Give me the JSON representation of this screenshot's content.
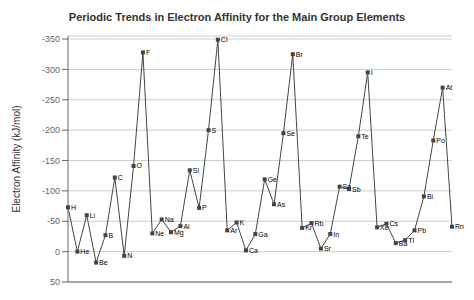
{
  "chart_data": {
    "type": "line",
    "title": "Periodic Trends in Electron Affinity for the Main Group Elements",
    "ylabel": "Electron Affinity (kJ/mol)",
    "categories": [
      "H",
      "He",
      "Li",
      "Be",
      "B",
      "C",
      "N",
      "O",
      "F",
      "Ne",
      "Na",
      "Mg",
      "Al",
      "Si",
      "P",
      "S",
      "Cl",
      "Ar",
      "K",
      "Ca",
      "Ga",
      "Ge",
      "As",
      "Se",
      "Br",
      "Kr",
      "Rb",
      "Sr",
      "In",
      "Sn",
      "Sb",
      "Te",
      "I",
      "Xe",
      "Cs",
      "Ba",
      "Tl",
      "Pb",
      "Bi",
      "Po",
      "At",
      "Rn"
    ],
    "values": [
      -73,
      0,
      -60,
      18,
      -27,
      -122,
      7,
      -141,
      -328,
      -30,
      -53,
      -32,
      -42,
      -134,
      -72,
      -200,
      -349,
      -35,
      -48,
      -2,
      -29,
      -119,
      -78,
      -195,
      -325,
      -39,
      -47,
      -5,
      -29,
      -107,
      -103,
      -190,
      -295,
      -40,
      -46,
      -14,
      -19,
      -35,
      -91,
      -183,
      -270,
      -41
    ],
    "color": "#444444",
    "marker": "square",
    "ylim": [
      50,
      -355
    ],
    "yticks": [
      -350,
      -300,
      -250,
      -200,
      -150,
      -100,
      -50,
      0,
      50
    ],
    "grid": true,
    "tick_labels": "y"
  }
}
